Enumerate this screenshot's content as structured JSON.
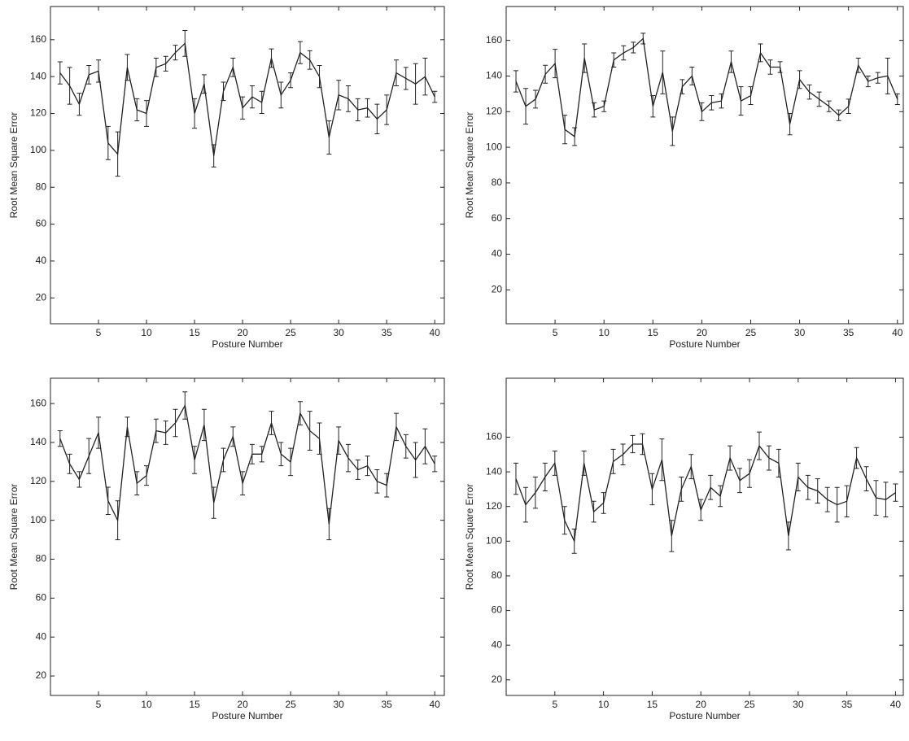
{
  "chart_data": [
    {
      "type": "line",
      "xlabel": "Posture Number",
      "ylabel": "Root Mean Square Error",
      "color": "#222222",
      "x": [
        1,
        2,
        3,
        4,
        5,
        6,
        7,
        8,
        9,
        10,
        11,
        12,
        13,
        14,
        15,
        16,
        17,
        18,
        19,
        20,
        21,
        22,
        23,
        24,
        25,
        26,
        27,
        28,
        29,
        30,
        31,
        32,
        33,
        34,
        35,
        36,
        37,
        38,
        39,
        40
      ],
      "values": [
        142,
        135,
        125,
        141,
        143,
        104,
        98,
        145,
        122,
        120,
        145,
        147,
        153,
        158,
        120,
        136,
        97,
        132,
        145,
        123,
        129,
        126,
        150,
        130,
        138,
        153,
        149,
        140,
        107,
        130,
        128,
        122,
        123,
        117,
        122,
        142,
        139,
        136,
        140,
        129
      ],
      "errors": [
        6,
        10,
        6,
        5,
        6,
        9,
        12,
        7,
        6,
        7,
        5,
        4,
        4,
        7,
        8,
        5,
        6,
        5,
        5,
        6,
        6,
        6,
        5,
        7,
        4,
        6,
        5,
        6,
        9,
        8,
        7,
        6,
        5,
        8,
        8,
        7,
        6,
        11,
        10,
        3
      ],
      "xlim": [
        0,
        41
      ],
      "ylim": [
        6,
        178
      ],
      "xticks": [
        5,
        10,
        15,
        20,
        25,
        30,
        35,
        40
      ],
      "yticks": [
        20,
        40,
        60,
        80,
        100,
        120,
        140,
        160
      ]
    },
    {
      "type": "line",
      "xlabel": "Posture Number",
      "ylabel": "Root Mean Square Error",
      "color": "#222222",
      "x": [
        1,
        2,
        3,
        4,
        5,
        6,
        7,
        8,
        9,
        10,
        11,
        12,
        13,
        14,
        15,
        16,
        17,
        18,
        19,
        20,
        21,
        22,
        23,
        24,
        25,
        26,
        27,
        28,
        29,
        30,
        31,
        32,
        33,
        34,
        35,
        36,
        37,
        38,
        39,
        40
      ],
      "values": [
        137,
        123,
        127,
        141,
        147,
        110,
        106,
        150,
        121,
        123,
        149,
        153,
        156,
        161,
        123,
        142,
        109,
        134,
        140,
        120,
        125,
        126,
        148,
        126,
        129,
        153,
        145,
        145,
        113,
        138,
        131,
        127,
        123,
        118,
        123,
        146,
        137,
        139,
        140,
        127
      ],
      "errors": [
        6,
        10,
        5,
        5,
        8,
        8,
        5,
        8,
        4,
        3,
        4,
        4,
        3,
        3,
        6,
        12,
        8,
        4,
        5,
        5,
        4,
        4,
        6,
        8,
        5,
        5,
        4,
        3,
        6,
        5,
        4,
        4,
        3,
        3,
        4,
        4,
        3,
        3,
        10,
        3
      ],
      "xlim": [
        0,
        40.6
      ],
      "ylim": [
        1,
        179
      ],
      "xticks": [
        5,
        10,
        15,
        20,
        25,
        30,
        35,
        40
      ],
      "yticks": [
        20,
        40,
        60,
        80,
        100,
        120,
        140,
        160
      ]
    },
    {
      "type": "line",
      "xlabel": "Posture Number",
      "ylabel": "Root Mean Square Error",
      "color": "#222222",
      "x": [
        1,
        2,
        3,
        4,
        5,
        6,
        7,
        8,
        9,
        10,
        11,
        12,
        13,
        14,
        15,
        16,
        17,
        18,
        19,
        20,
        21,
        22,
        23,
        24,
        25,
        26,
        27,
        28,
        29,
        30,
        31,
        32,
        33,
        34,
        35,
        36,
        37,
        38,
        39,
        40
      ],
      "values": [
        142,
        129,
        121,
        133,
        145,
        110,
        100,
        148,
        119,
        123,
        146,
        145,
        150,
        159,
        131,
        149,
        109,
        131,
        143,
        119,
        134,
        134,
        150,
        134,
        130,
        155,
        146,
        142,
        98,
        141,
        132,
        126,
        128,
        120,
        118,
        148,
        138,
        131,
        138,
        129
      ],
      "errors": [
        4,
        5,
        4,
        9,
        8,
        7,
        10,
        5,
        6,
        5,
        6,
        6,
        7,
        7,
        7,
        8,
        8,
        6,
        5,
        6,
        5,
        4,
        6,
        6,
        7,
        6,
        10,
        8,
        8,
        7,
        7,
        5,
        5,
        6,
        6,
        7,
        6,
        9,
        9,
        4
      ],
      "xlim": [
        0,
        41
      ],
      "ylim": [
        10,
        173
      ],
      "xticks": [
        5,
        10,
        15,
        20,
        25,
        30,
        35,
        40
      ],
      "yticks": [
        20,
        40,
        60,
        80,
        100,
        120,
        140,
        160
      ]
    },
    {
      "type": "line",
      "xlabel": "Posture Number",
      "ylabel": "Root Mean Square Error",
      "color": "#222222",
      "x": [
        1,
        2,
        3,
        4,
        5,
        6,
        7,
        8,
        9,
        10,
        11,
        12,
        13,
        14,
        15,
        16,
        17,
        18,
        19,
        20,
        21,
        22,
        23,
        24,
        25,
        26,
        27,
        28,
        29,
        30,
        31,
        32,
        33,
        34,
        35,
        36,
        37,
        38,
        39,
        40
      ],
      "values": [
        136,
        121,
        128,
        137,
        145,
        112,
        100,
        145,
        117,
        122,
        146,
        150,
        156,
        156,
        130,
        147,
        103,
        130,
        143,
        118,
        131,
        126,
        148,
        135,
        139,
        155,
        148,
        145,
        103,
        137,
        131,
        129,
        124,
        121,
        123,
        148,
        136,
        125,
        124,
        128
      ],
      "errors": [
        9,
        10,
        9,
        8,
        7,
        8,
        7,
        7,
        6,
        6,
        7,
        6,
        5,
        6,
        9,
        12,
        9,
        7,
        7,
        6,
        7,
        6,
        7,
        7,
        8,
        8,
        7,
        8,
        8,
        8,
        7,
        7,
        7,
        10,
        9,
        6,
        7,
        10,
        10,
        5
      ],
      "xlim": [
        0,
        40.8
      ],
      "ylim": [
        11,
        194
      ],
      "xticks": [
        5,
        10,
        15,
        20,
        25,
        30,
        35,
        40
      ],
      "yticks": [
        20,
        40,
        60,
        80,
        100,
        120,
        140,
        160
      ]
    }
  ]
}
